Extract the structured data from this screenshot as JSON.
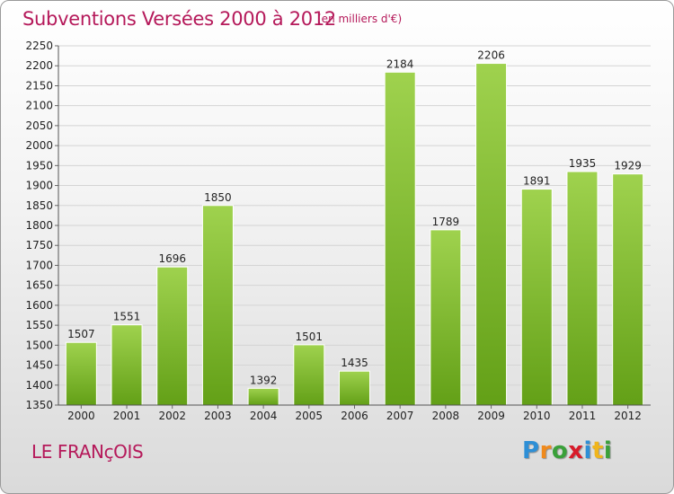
{
  "header": {
    "title": "Subventions Versées 2000 à 2012",
    "subtitle": "(en milliers d'€)"
  },
  "commune": "LE FRANçOIS",
  "brand": {
    "letters": [
      "P",
      "r",
      "o",
      "x",
      "i",
      "t",
      "i"
    ],
    "colors": [
      "#2e8fd6",
      "#f08a1c",
      "#3aa03a",
      "#d81b2a",
      "#2e8fd6",
      "#f0b51c",
      "#3aa03a"
    ]
  },
  "chart_data": {
    "type": "bar",
    "categories": [
      "2000",
      "2001",
      "2002",
      "2003",
      "2004",
      "2005",
      "2006",
      "2007",
      "2008",
      "2009",
      "2010",
      "2011",
      "2012"
    ],
    "values": [
      1507,
      1551,
      1696,
      1850,
      1392,
      1501,
      1435,
      2184,
      1789,
      2206,
      1891,
      1935,
      1929
    ],
    "ylim": [
      1350,
      2250
    ],
    "ytick_step": 50,
    "title": "Subventions Versées 2000 à 2012",
    "subtitle": "(en milliers d'€)",
    "xlabel": "",
    "ylabel": "",
    "grid": true,
    "bar_color": "#7cbd2c",
    "data_labels": true
  }
}
